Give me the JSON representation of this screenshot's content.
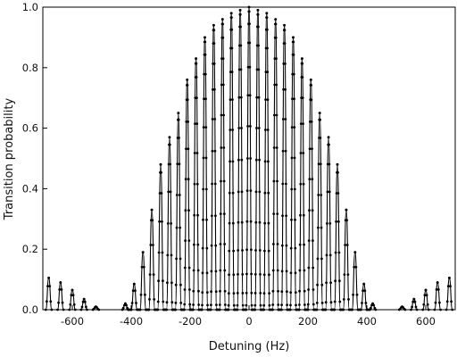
{
  "chart_data": {
    "type": "line",
    "title": "",
    "xlabel": "Detuning (Hz)",
    "ylabel": "Transition probability",
    "xlim": [
      -700,
      700
    ],
    "ylim": [
      0,
      1.0
    ],
    "xticks": [
      -600,
      -400,
      -200,
      0,
      200,
      400,
      600
    ],
    "xtick_labels": [
      "-600",
      "-400",
      "-200",
      "0",
      "200",
      "400",
      "600"
    ],
    "yticks": [
      0.0,
      0.2,
      0.4,
      0.6,
      0.8,
      1.0
    ],
    "ytick_labels": [
      "0.0",
      "0.2",
      "0.4",
      "0.6",
      "0.8",
      "1.0"
    ],
    "grid": false,
    "legend": "none",
    "series": [
      {
        "style": "dotted line with small black markers",
        "color": "#000000",
        "x": [
          -690,
          -680,
          -670,
          -650,
          -640,
          -630,
          -610,
          -600,
          -590,
          -570,
          -560,
          -550,
          -530,
          -520,
          -510,
          -430,
          -420,
          -410,
          -400,
          -390,
          -380,
          -370,
          -360,
          -350,
          -340,
          -330,
          -320,
          -310,
          -300,
          -290,
          -280,
          -270,
          -260,
          -250,
          -240,
          -230,
          -220,
          -210,
          -200,
          -190,
          -180,
          -170,
          -160,
          -150,
          -140,
          -130,
          -120,
          -110,
          -100,
          -90,
          -80,
          -70,
          -60,
          -50,
          -40,
          -30,
          -20,
          -10,
          0,
          10,
          20,
          30,
          40,
          50,
          60,
          70,
          80,
          90,
          100,
          110,
          120,
          130,
          140,
          150,
          160,
          170,
          180,
          190,
          200,
          210,
          220,
          230,
          240,
          250,
          260,
          270,
          280,
          290,
          300,
          310,
          320,
          330,
          340,
          350,
          360,
          370,
          380,
          390,
          400,
          410,
          420,
          430,
          510,
          520,
          530,
          550,
          560,
          570,
          590,
          600,
          610,
          630,
          640,
          650,
          670,
          680,
          690
        ],
        "y": [
          0.0,
          0.105,
          0.0,
          0.0,
          0.09,
          0.0,
          0.0,
          0.065,
          0.0,
          0.0,
          0.035,
          0.0,
          0.0,
          0.01,
          0.0,
          0.0,
          0.02,
          0.0,
          0.0,
          0.085,
          0.0,
          0.0,
          0.19,
          0.0,
          0.0,
          0.33,
          0.0,
          0.0,
          0.48,
          0.0,
          0.0,
          0.57,
          0.0,
          0.0,
          0.65,
          0.0,
          0.0,
          0.76,
          0.0,
          0.0,
          0.83,
          0.0,
          0.0,
          0.9,
          0.0,
          0.0,
          0.94,
          0.0,
          0.0,
          0.96,
          0.0,
          0.0,
          0.98,
          0.0,
          0.0,
          0.99,
          0.0,
          0.0,
          1.0,
          0.0,
          0.0,
          0.99,
          0.0,
          0.0,
          0.98,
          0.0,
          0.0,
          0.96,
          0.0,
          0.0,
          0.94,
          0.0,
          0.0,
          0.9,
          0.0,
          0.0,
          0.83,
          0.0,
          0.0,
          0.76,
          0.0,
          0.0,
          0.65,
          0.0,
          0.0,
          0.57,
          0.0,
          0.0,
          0.48,
          0.0,
          0.0,
          0.33,
          0.0,
          0.0,
          0.19,
          0.0,
          0.0,
          0.085,
          0.0,
          0.0,
          0.02,
          0.0,
          0.0,
          0.01,
          0.0,
          0.0,
          0.035,
          0.0,
          0.0,
          0.065,
          0.0,
          0.0,
          0.09,
          0.0,
          0.0,
          0.105,
          0.0
        ]
      }
    ]
  }
}
